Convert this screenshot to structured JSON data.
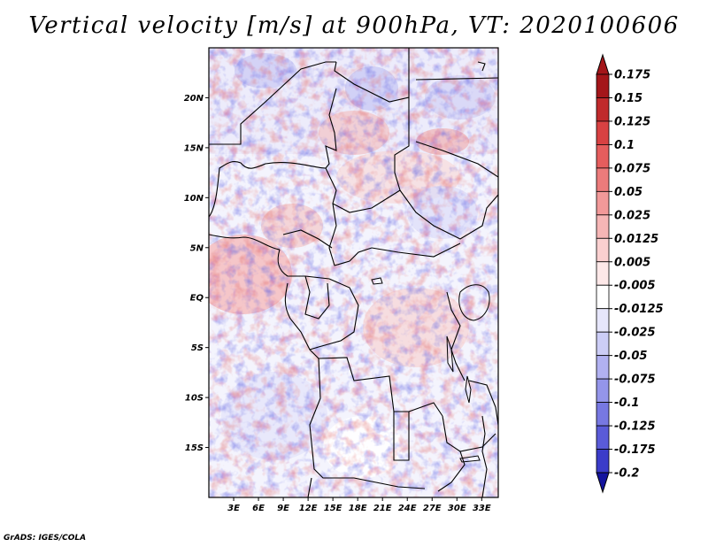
{
  "title": "Vertical velocity [m/s] at 900hPa, VT: 2020100606",
  "footer": "GrADS: IGES/COLA",
  "map": {
    "lat_range": [
      -20,
      25
    ],
    "lon_range": [
      0,
      35
    ],
    "lat_ticks": [
      {
        "label": "20N",
        "value": 20
      },
      {
        "label": "15N",
        "value": 15
      },
      {
        "label": "10N",
        "value": 10
      },
      {
        "label": "5N",
        "value": 5
      },
      {
        "label": "EQ",
        "value": 0
      },
      {
        "label": "5S",
        "value": -5
      },
      {
        "label": "10S",
        "value": -10
      },
      {
        "label": "15S",
        "value": -15
      }
    ],
    "lon_ticks": [
      {
        "label": "3E",
        "value": 3
      },
      {
        "label": "6E",
        "value": 6
      },
      {
        "label": "9E",
        "value": 9
      },
      {
        "label": "12E",
        "value": 12
      },
      {
        "label": "15E",
        "value": 15
      },
      {
        "label": "18E",
        "value": 18
      },
      {
        "label": "21E",
        "value": 21
      },
      {
        "label": "24E",
        "value": 24
      },
      {
        "label": "27E",
        "value": 27
      },
      {
        "label": "30E",
        "value": 30
      },
      {
        "label": "33E",
        "value": 33
      }
    ]
  },
  "colorbar": {
    "levels": [
      {
        "label": "0.175",
        "color": "#a4161a"
      },
      {
        "label": "0.15",
        "color": "#c02a2c"
      },
      {
        "label": "0.125",
        "color": "#d84142"
      },
      {
        "label": "0.1",
        "color": "#e55d5d"
      },
      {
        "label": "0.075",
        "color": "#ec7b7b"
      },
      {
        "label": "0.05",
        "color": "#f29999"
      },
      {
        "label": "0.025",
        "color": "#f6b6b6"
      },
      {
        "label": "0.0125",
        "color": "#fad0d0"
      },
      {
        "label": "0.005",
        "color": "#fde8e8"
      },
      {
        "label": "-0.005",
        "color": "#ffffff"
      },
      {
        "label": "-0.0125",
        "color": "#e6e6fb"
      },
      {
        "label": "-0.025",
        "color": "#cccdf6"
      },
      {
        "label": "-0.05",
        "color": "#b1b1f1"
      },
      {
        "label": "-0.075",
        "color": "#9495ea"
      },
      {
        "label": "-0.1",
        "color": "#7778e2"
      },
      {
        "label": "-0.125",
        "color": "#5a5bd8"
      },
      {
        "label": "-0.175",
        "color": "#3b3cc9"
      },
      {
        "label": "-0.2",
        "color": "#1e1fb2"
      }
    ],
    "max_color": "#a4161a",
    "min_color": "#14149e"
  }
}
